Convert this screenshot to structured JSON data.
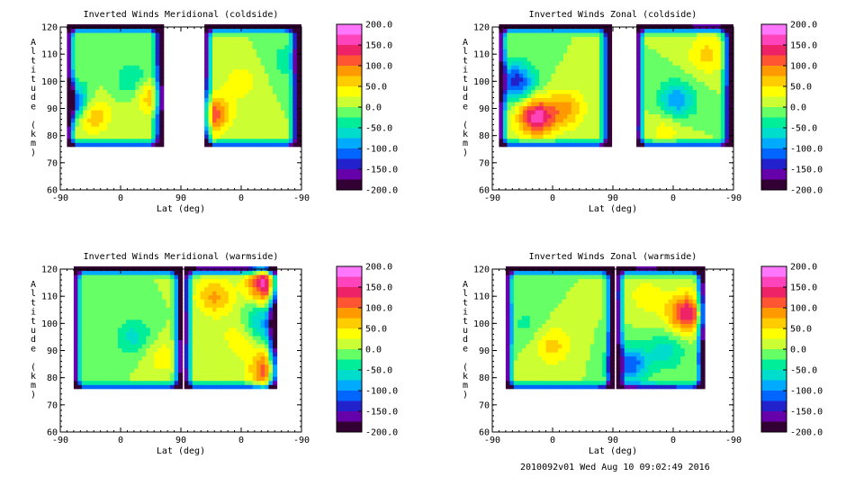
{
  "footer": "2010092v01 Wed Aug 10 09:02:49 2016",
  "colorbar_ticks": [
    "200.0",
    "150.0",
    "100.0",
    "50.0",
    "0.0",
    "-50.0",
    "-100.0",
    "-150.0",
    "-200.0"
  ],
  "colorbar_colors": [
    "#ff77ff",
    "#ff44bb",
    "#ee2266",
    "#ff5533",
    "#ff9900",
    "#ffcc00",
    "#ffff00",
    "#ccff33",
    "#66ff66",
    "#00ee99",
    "#00ddcc",
    "#00aaff",
    "#0066ff",
    "#2222cc",
    "#6600aa",
    "#330033"
  ],
  "chart_data": [
    {
      "type": "heatmap",
      "title": "Inverted Winds Meridional (coldside)",
      "xlabel": "Lat (deg)",
      "ylabel": "Altitude (km)",
      "xticks": [
        "-90",
        "0",
        "90",
        "0",
        "-90"
      ],
      "yticks": [
        "120",
        "110",
        "100",
        "90",
        "80",
        "70",
        "60"
      ],
      "ylim": [
        60,
        120
      ],
      "zlim": [
        -200,
        200
      ],
      "x_segments": [
        [
          -80,
          60
        ],
        [
          125,
          265
        ]
      ],
      "y_range": [
        76,
        120
      ],
      "blobs": [
        {
          "x": -45,
          "y": 88,
          "v": 90
        },
        {
          "x": 45,
          "y": 95,
          "v": 80
        },
        {
          "x": 180,
          "y": 100,
          "v": 40
        },
        {
          "x": 20,
          "y": 100,
          "v": -60
        },
        {
          "x": -75,
          "y": 92,
          "v": -180
        },
        {
          "x": 135,
          "y": 88,
          "v": 120
        },
        {
          "x": 250,
          "y": 108,
          "v": -40
        }
      ]
    },
    {
      "type": "heatmap",
      "title": "Inverted Winds Zonal (coldside)",
      "xlabel": "Lat (deg)",
      "ylabel": "Altitude (km)",
      "xticks": [
        "-90",
        "0",
        "90",
        "0",
        "-90"
      ],
      "yticks": [
        "120",
        "110",
        "100",
        "90",
        "80",
        "70",
        "60"
      ],
      "ylim": [
        60,
        120
      ],
      "zlim": [
        -200,
        200
      ],
      "x_segments": [
        [
          -80,
          85
        ],
        [
          125,
          265
        ]
      ],
      "y_range": [
        76,
        120
      ],
      "blobs": [
        {
          "x": -25,
          "y": 87,
          "v": 160
        },
        {
          "x": 20,
          "y": 90,
          "v": 80
        },
        {
          "x": -55,
          "y": 100,
          "v": -140
        },
        {
          "x": 185,
          "y": 93,
          "v": -100
        },
        {
          "x": 170,
          "y": 83,
          "v": 40
        },
        {
          "x": 230,
          "y": 110,
          "v": 60
        }
      ]
    },
    {
      "type": "heatmap",
      "title": "Inverted Winds Meridional (warmside)",
      "xlabel": "Lat (deg)",
      "ylabel": "Altitude (km)",
      "xticks": [
        "-90",
        "0",
        "90",
        "0",
        "-90"
      ],
      "yticks": [
        "120",
        "110",
        "100",
        "90",
        "80",
        "70",
        "60"
      ],
      "ylim": [
        60,
        120
      ],
      "zlim": [
        -200,
        200
      ],
      "x_segments": [
        [
          -70,
          90
        ],
        [
          95,
          230
        ]
      ],
      "y_range": [
        76,
        120
      ],
      "blobs": [
        {
          "x": 20,
          "y": 95,
          "v": -60
        },
        {
          "x": 60,
          "y": 88,
          "v": 40
        },
        {
          "x": 140,
          "y": 110,
          "v": 80
        },
        {
          "x": 220,
          "y": 115,
          "v": 180
        },
        {
          "x": 220,
          "y": 83,
          "v": 120
        },
        {
          "x": 180,
          "y": 95,
          "v": 50
        },
        {
          "x": 210,
          "y": 100,
          "v": -90
        }
      ]
    },
    {
      "type": "heatmap",
      "title": "Inverted Winds Zonal (warmside)",
      "xlabel": "Lat (deg)",
      "ylabel": "Altitude (km)",
      "xticks": [
        "-90",
        "0",
        "90",
        "0",
        "-90"
      ],
      "yticks": [
        "120",
        "110",
        "100",
        "90",
        "80",
        "70",
        "60"
      ],
      "ylim": [
        60,
        120
      ],
      "zlim": [
        -200,
        200
      ],
      "x_segments": [
        [
          -70,
          90
        ],
        [
          95,
          225
        ]
      ],
      "y_range": [
        76,
        120
      ],
      "blobs": [
        {
          "x": 0,
          "y": 92,
          "v": 60
        },
        {
          "x": -40,
          "y": 100,
          "v": -30
        },
        {
          "x": 200,
          "y": 104,
          "v": 150
        },
        {
          "x": 170,
          "y": 90,
          "v": -60
        },
        {
          "x": 140,
          "y": 110,
          "v": 40
        },
        {
          "x": 115,
          "y": 85,
          "v": -120
        }
      ]
    }
  ]
}
